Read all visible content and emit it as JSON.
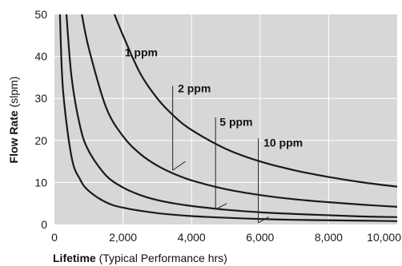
{
  "chart_data": {
    "type": "line",
    "xlabel_bold": "Lifetime",
    "xlabel_rest": " (Typical Performance hrs)",
    "ylabel_bold": "Flow Rate",
    "ylabel_rest": " (slpm)",
    "xlim": [
      0,
      10000
    ],
    "ylim": [
      0,
      50
    ],
    "x_ticks": [
      {
        "value": 0,
        "label": "0"
      },
      {
        "value": 2000,
        "label": "2,000"
      },
      {
        "value": 4000,
        "label": "4,000"
      },
      {
        "value": 6000,
        "label": "6,000"
      },
      {
        "value": 8000,
        "label": "8,000"
      },
      {
        "value": 10000,
        "label": "10,000"
      }
    ],
    "y_ticks": [
      {
        "value": 0,
        "label": "0"
      },
      {
        "value": 10,
        "label": "10"
      },
      {
        "value": 20,
        "label": "20"
      },
      {
        "value": 30,
        "label": "30"
      },
      {
        "value": 40,
        "label": "40"
      },
      {
        "value": 50,
        "label": "50"
      }
    ],
    "grid": true,
    "plot_background": "#d6d7d9",
    "grid_color": "#ffffff",
    "line_color": "#1a1a1a",
    "series": [
      {
        "name": "1 ppm",
        "points": [
          [
            1750,
            50
          ],
          [
            2000,
            45
          ],
          [
            2500,
            36
          ],
          [
            3000,
            30
          ],
          [
            3500,
            25.7
          ],
          [
            4000,
            22.5
          ],
          [
            5000,
            18
          ],
          [
            6000,
            15
          ],
          [
            7000,
            12.9
          ],
          [
            8000,
            11.3
          ],
          [
            9000,
            10
          ],
          [
            10000,
            9
          ]
        ],
        "label_at": [
          2050,
          40
        ],
        "pointer": {
          "top": [
            3450,
            33
          ],
          "bottom": [
            3450,
            12.9
          ],
          "tick_end": [
            3820,
            15
          ]
        }
      },
      {
        "name": "2 ppm",
        "points": [
          [
            800,
            50
          ],
          [
            1000,
            42
          ],
          [
            1500,
            28
          ],
          [
            2000,
            21
          ],
          [
            2500,
            16.8
          ],
          [
            3000,
            14
          ],
          [
            3500,
            12
          ],
          [
            4000,
            10.5
          ],
          [
            5000,
            8.4
          ],
          [
            6000,
            7
          ],
          [
            7000,
            6
          ],
          [
            8000,
            5.3
          ],
          [
            9000,
            4.7
          ],
          [
            10000,
            4.2
          ]
        ],
        "label_at": [
          3600,
          31.5
        ],
        "pointer": {
          "top": [
            4700,
            25.5
          ],
          "bottom": [
            4700,
            3.6
          ],
          "tick_end": [
            5030,
            5
          ]
        }
      },
      {
        "name": "5 ppm",
        "points": [
          [
            350,
            50
          ],
          [
            500,
            35
          ],
          [
            750,
            23.3
          ],
          [
            1000,
            17.5
          ],
          [
            1500,
            11.7
          ],
          [
            2000,
            8.8
          ],
          [
            2500,
            7
          ],
          [
            3000,
            5.8
          ],
          [
            3500,
            5
          ],
          [
            4000,
            4.4
          ],
          [
            5000,
            3.5
          ],
          [
            6000,
            2.9
          ],
          [
            7000,
            2.5
          ],
          [
            8000,
            2.2
          ],
          [
            9000,
            1.9
          ],
          [
            10000,
            1.75
          ]
        ],
        "label_at": [
          4820,
          23.5
        ],
        "pointer": {
          "top": [
            5950,
            20.5
          ],
          "bottom": [
            5950,
            0.4
          ],
          "tick_end": [
            6250,
            1.8
          ]
        }
      },
      {
        "name": "10 ppm",
        "points": [
          [
            160,
            50
          ],
          [
            250,
            32
          ],
          [
            500,
            16
          ],
          [
            750,
            10.7
          ],
          [
            1000,
            8
          ],
          [
            1500,
            5.3
          ],
          [
            2000,
            4
          ],
          [
            3000,
            2.7
          ],
          [
            4000,
            2
          ],
          [
            5000,
            1.6
          ],
          [
            6000,
            1.3
          ],
          [
            7000,
            1.1
          ],
          [
            8000,
            1
          ],
          [
            9000,
            0.9
          ],
          [
            10000,
            0.8
          ]
        ],
        "label_at": [
          6100,
          18.5
        ],
        "pointer": null
      }
    ]
  }
}
